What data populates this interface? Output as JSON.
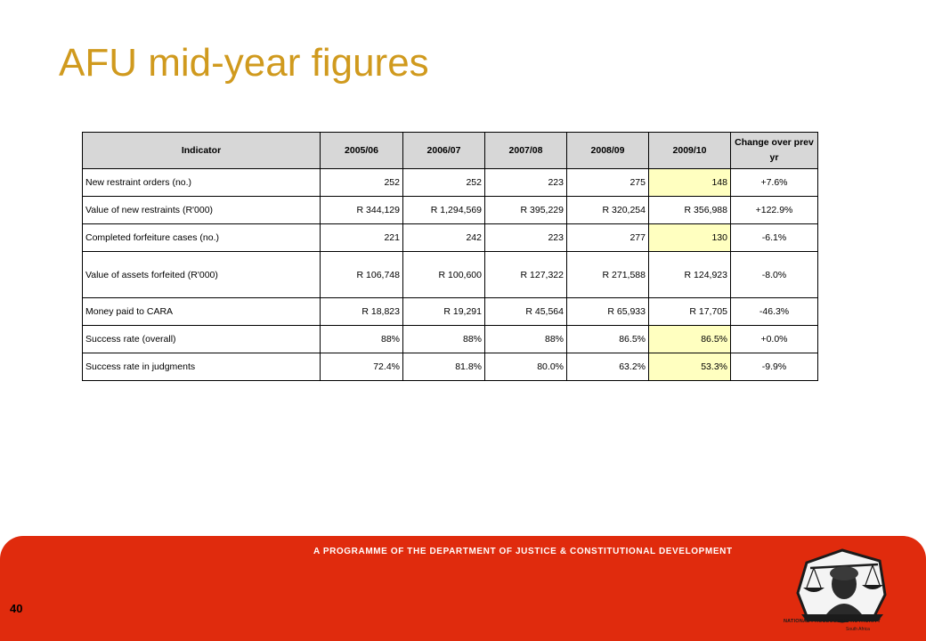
{
  "slide": {
    "title": "AFU mid-year figures",
    "page_number": "40",
    "footer_text": "A PROGRAMME OF THE DEPARTMENT OF JUSTICE & CONSTITUTIONAL DEVELOPMENT"
  },
  "table": {
    "headers": [
      "Indicator",
      "2005/06",
      "2006/07",
      "2007/08",
      "2008/09",
      "2009/10",
      "Change over prev yr"
    ],
    "rows": [
      {
        "indicator": "New restraint orders (no.)",
        "y2005": "252",
        "y2006": "252",
        "y2007": "223",
        "y2008": "275",
        "y2009": "148",
        "change": "+7.6%"
      },
      {
        "indicator": "Value of new restraints (R'000)",
        "y2005": "R 344,129",
        "y2006": "R 1,294,569",
        "y2007": "R 395,229",
        "y2008": "R 320,254",
        "y2009": "R 356,988",
        "change": "+122.9%"
      },
      {
        "indicator": "Completed forfeiture cases (no.)",
        "y2005": "221",
        "y2006": "242",
        "y2007": "223",
        "y2008": "277",
        "y2009": "130",
        "change": "-6.1%"
      },
      {
        "indicator": "Value of assets forfeited (R'000)",
        "y2005": "R 106,748",
        "y2006": "R 100,600",
        "y2007": "R 127,322",
        "y2008": "R 271,588",
        "y2009": "R 124,923",
        "change": "-8.0%"
      },
      {
        "indicator": "Money paid to CARA",
        "y2005": "R 18,823",
        "y2006": "R 19,291",
        "y2007": "R 45,564",
        "y2008": "R 65,933",
        "y2009": "R 17,705",
        "change": "-46.3%"
      },
      {
        "indicator": "Success rate (overall)",
        "y2005": "88%",
        "y2006": "88%",
        "y2007": "88%",
        "y2008": "86.5%",
        "y2009": "86.5%",
        "change": "+0.0%"
      },
      {
        "indicator": "Success rate in judgments",
        "y2005": "72.4%",
        "y2006": "81.8%",
        "y2007": "80.0%",
        "y2008": "63.2%",
        "y2009": "53.3%",
        "change": "-9.9%"
      }
    ]
  },
  "logo": {
    "name": "NATIONAL PROSECUTING AUTHORITY",
    "subtitle": "South Africa",
    "icon": "scales-of-justice-emblem"
  },
  "colors": {
    "title": "#d09a1e",
    "footer": "#e02b0d",
    "header_fill": "#d7d7d7",
    "highlight": "#ffffc0"
  }
}
